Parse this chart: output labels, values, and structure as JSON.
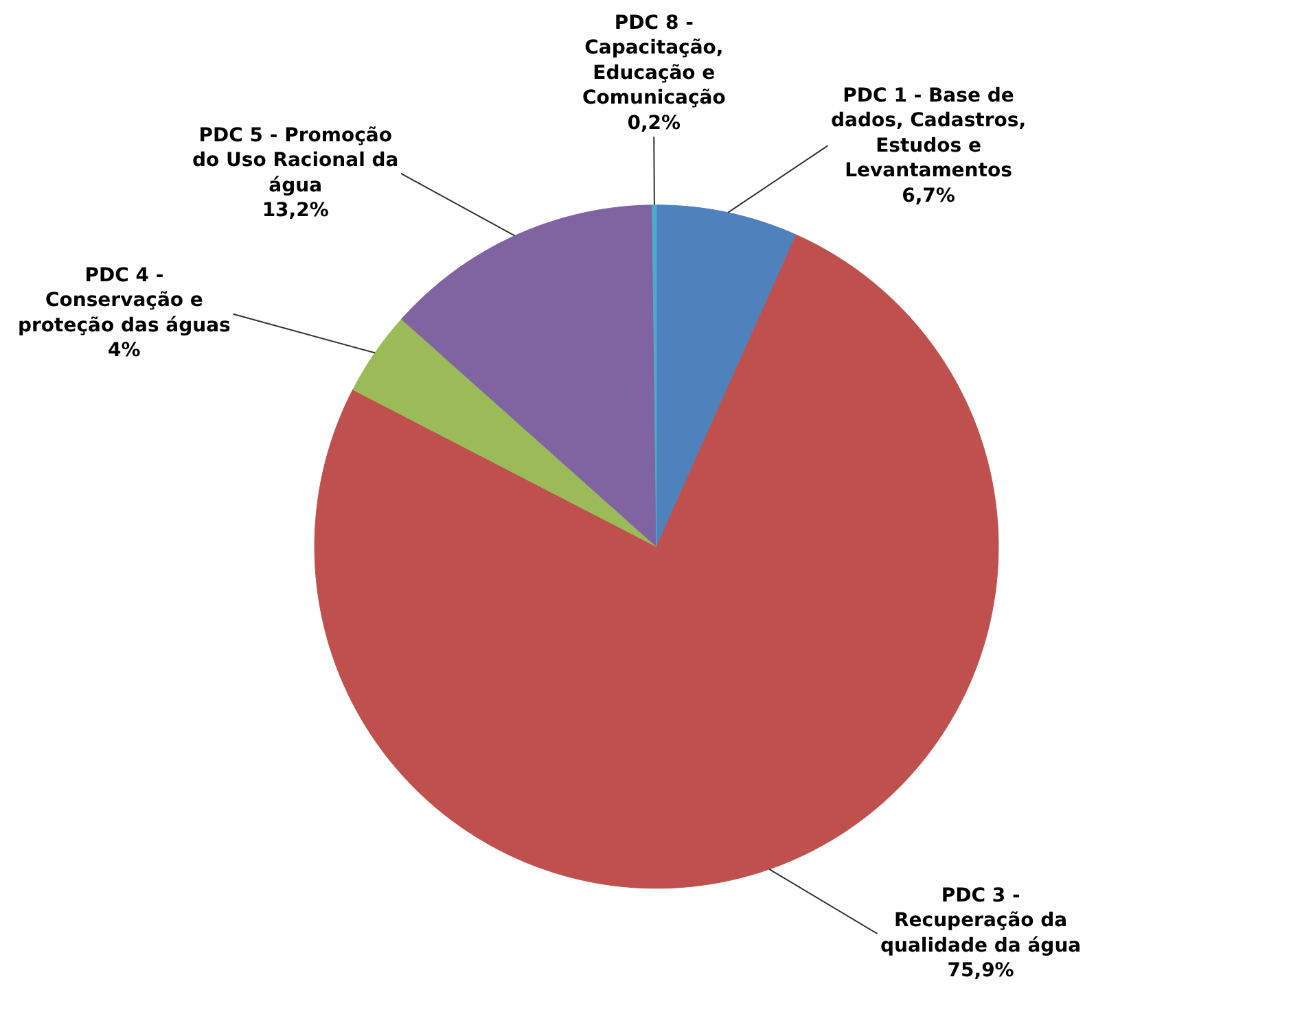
{
  "chart_data": {
    "type": "pie",
    "categories": [
      "PDC 1 - Base de dados, Cadastros, Estudos e Levantamentos",
      "PDC 3 - Recuperação da qualidade da água",
      "PDC 4 - Conservação e proteção das águas",
      "PDC 5 - Promoção do Uso Racional da água",
      "PDC 8 - Capacitação, Educação e Comunicação"
    ],
    "values": [
      6.7,
      75.9,
      4,
      13.2,
      0.2
    ],
    "value_labels": [
      "6,7%",
      "75,9%",
      "4%",
      "13,2%",
      "0,2%"
    ],
    "colors": [
      "#4f81bd",
      "#c0504d",
      "#9bbb59",
      "#8064a2",
      "#4bacc6"
    ]
  }
}
